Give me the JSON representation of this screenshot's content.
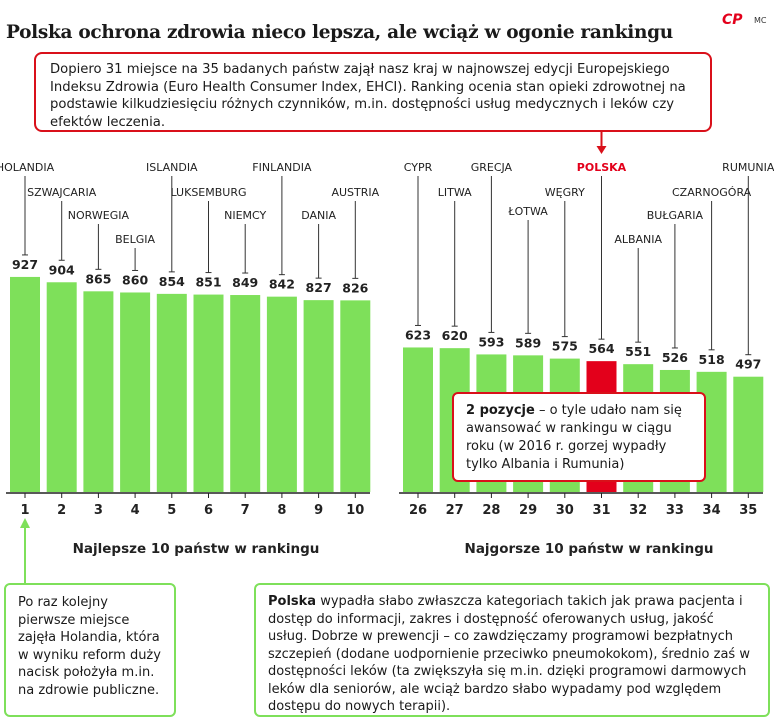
{
  "title": "Polska ochrona zdrowia nieco lepsza, ale wciąż w ogonie rankingu",
  "brand": {
    "logo": "CP",
    "author": "MC"
  },
  "intro": "Dopiero 31 miejsce na 35 badanych państw zajął nasz kraj w najnowszej edycji Europejskiego Indeksu Zdrowia (Euro Health Consumer Index, EHCI). Ranking ocenia stan opieki zdrowotnej na podstawie kilkudziesięciu różnych czynników, m.in. dostępności usług medycznych i leków czy efektów leczenia.",
  "note": {
    "lead": "2 pozycje",
    "text": " – o tyle udało nam się awansować w rankingu w ciągu roku (w 2016 r. gorzej wypadły tylko Albania i Rumunia)"
  },
  "holland_note": "Po raz kolejny pierwsze miejsce zajęła Holandia, która w wyniku reform duży nacisk położyła m.in. na zdrowie publiczne.",
  "poland_note": {
    "lead": "Polska",
    "text": " wypadła słabo zwłaszcza kategoriach takich jak prawa pacjenta i dostęp do informacji, zakres i dostępność oferowanych usług, jakość usług. Dobrze w prewencji – co zawdzięczamy programowi bezpłatnych szczepień (dodane uodpornienie przeciwko pneumokokom), średnio zaś w dostępności leków (ta zwiększyła się m.in. dzięki programowi darmowych leków dla seniorów, ale wciąż bardzo słabo wypadamy pod względem dostępu do nowych terapii)."
  },
  "colors": {
    "bar": "#7ee05a",
    "highlight": "#e3001b",
    "accent": "#d9101a",
    "leader": "#333333"
  },
  "chart_data": {
    "type": "bar",
    "ylim": [
      0,
      1000
    ],
    "groups": [
      {
        "label": "Najlepsze 10 państw w rankingu",
        "ranks": [
          "1",
          "2",
          "3",
          "4",
          "5",
          "6",
          "7",
          "8",
          "9",
          "10"
        ],
        "countries": [
          "HOLANDIA",
          "SZWAJCARIA",
          "NORWEGIA",
          "BELGIA",
          "ISLANDIA",
          "LUKSEMBURG",
          "NIEMCY",
          "FINLANDIA",
          "DANIA",
          "AUSTRIA"
        ],
        "values": [
          927,
          904,
          865,
          860,
          854,
          851,
          849,
          842,
          827,
          826
        ]
      },
      {
        "label": "Najgorsze 10 państw w rankingu",
        "ranks": [
          "26",
          "27",
          "28",
          "29",
          "30",
          "31",
          "32",
          "33",
          "34",
          "35"
        ],
        "countries": [
          "CYPR",
          "LITWA",
          "GRECJA",
          "ŁOTWA",
          "WĘGRY",
          "POLSKA",
          "ALBANIA",
          "BUŁGARIA",
          "CZARNOGÓRA",
          "RUMUNIA"
        ],
        "values": [
          623,
          620,
          593,
          589,
          575,
          564,
          551,
          526,
          518,
          497
        ],
        "highlight": "POLSKA"
      }
    ]
  }
}
